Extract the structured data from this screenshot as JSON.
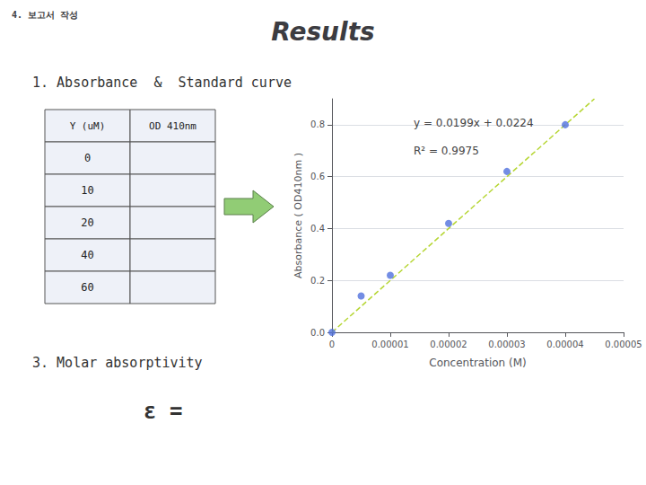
{
  "chart_data": {
    "type": "scatter",
    "title": "Results",
    "subtitle": "4. 보고서 작성",
    "section_titles": [
      "1. Absorbance  &  Standard curve",
      "3. Molar absorptivity"
    ],
    "label": "ε =",
    "table_header": [
      "Y (uM)",
      "OD 410nm"
    ],
    "table_rows": [
      "0",
      "10",
      "20",
      "40",
      "60"
    ],
    "xlabel": "Concentration (M)",
    "ylabel": "Absorbance ( OD410nm )",
    "series": [
      {
        "type": "scatter",
        "marker": "circle",
        "x": [
          0,
          5e-06,
          1e-05,
          2e-05,
          3e-05,
          4e-05
        ],
        "values": [
          0.0,
          0.14,
          0.22,
          0.42,
          0.62,
          0.8
        ]
      },
      {
        "type": "line",
        "line_style": "dashed",
        "x": [
          0,
          4.5e-05
        ],
        "values": [
          0,
          0.9
        ]
      }
    ],
    "annotations": [
      "y = 0.0199x + 0.0224",
      "R² = 0.9975"
    ],
    "xlim": [
      0,
      5e-05
    ],
    "ylim": [
      0,
      0.9
    ],
    "xticks": [
      {
        "value": 0,
        "label": "0"
      },
      {
        "value": 1e-05,
        "label": "0.00001"
      },
      {
        "value": 2e-05,
        "label": "0.00002"
      },
      {
        "value": 3e-05,
        "label": "0.00003"
      },
      {
        "value": 4e-05,
        "label": "0.00004"
      },
      {
        "value": 5e-05,
        "label": "0.00005"
      }
    ],
    "yticks": [
      {
        "value": 0,
        "label": "0.0"
      },
      0.2,
      0.4,
      0.6,
      0.8
    ],
    "grid": true
  }
}
